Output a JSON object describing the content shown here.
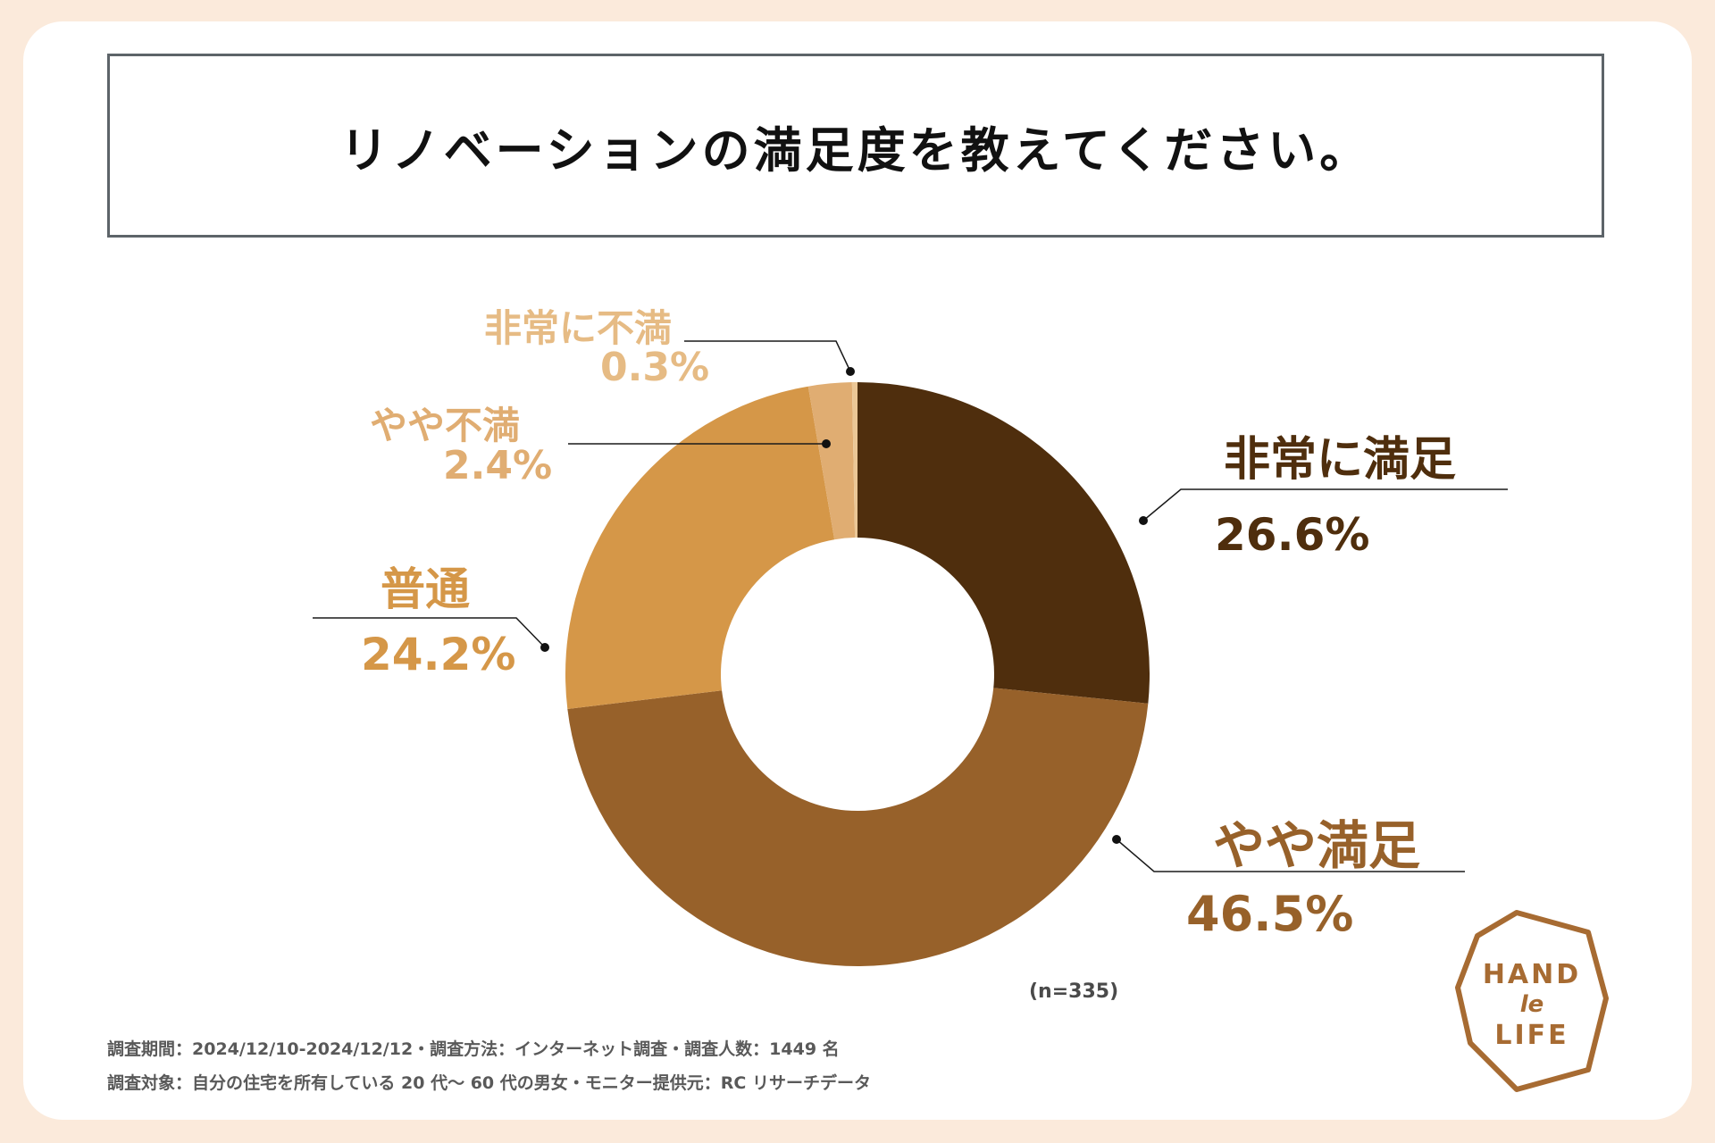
{
  "title": "リノベーションの満足度を教えてください。",
  "chart_data": {
    "type": "pie",
    "donut": true,
    "categories": [
      "非常に満足",
      "やや満足",
      "普通",
      "やや不満",
      "非常に不満"
    ],
    "values": [
      26.6,
      46.5,
      24.2,
      2.4,
      0.3
    ],
    "value_labels": [
      "26.6%",
      "46.5%",
      "24.2%",
      "2.4%",
      "0.3%"
    ],
    "colors": [
      "#4f2e0d",
      "#97612a",
      "#d59748",
      "#e0ad72",
      "#ebc796"
    ],
    "label_colors": [
      "#4f2e0d",
      "#97612a",
      "#d59748",
      "#e0ad72",
      "#e6bb84"
    ]
  },
  "sample_size": "(n=335)",
  "footer": {
    "line1": "調査期間：2024/12/10-2024/12/12・調査方法：インターネット調査・調査人数：1449 名",
    "line2": "調査対象：自分の住宅を所有している 20 代〜 60 代の男女・モニター提供元：RC リサーチデータ"
  },
  "logo": {
    "line1": "HAND",
    "line2": "le",
    "line3": "LIFE",
    "color": "#a76b32"
  }
}
